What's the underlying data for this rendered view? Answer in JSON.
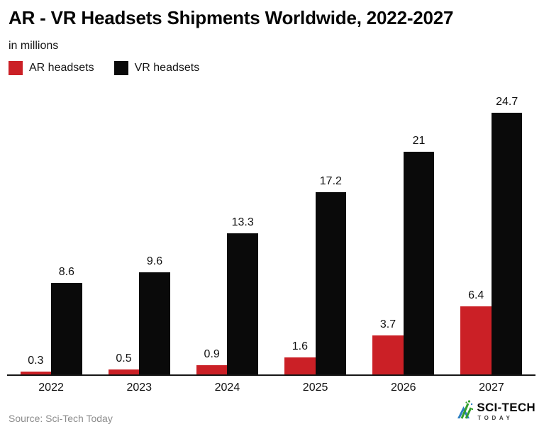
{
  "header": {
    "title": "AR - VR Headsets Shipments Worldwide, 2022-2027",
    "subtitle": "in millions"
  },
  "chart_data": {
    "type": "bar",
    "title": "AR - VR Headsets Shipments Worldwide, 2022-2027",
    "subtitle": "in millions",
    "categories": [
      "2022",
      "2023",
      "2024",
      "2025",
      "2026",
      "2027"
    ],
    "series": [
      {
        "name": "AR headsets",
        "color": "#cb2026",
        "values": [
          0.3,
          0.5,
          0.9,
          1.6,
          3.7,
          6.4
        ]
      },
      {
        "name": "VR headsets",
        "color": "#0a0a0a",
        "values": [
          8.6,
          9.6,
          13.3,
          17.2,
          21,
          24.7
        ]
      }
    ],
    "xlabel": "",
    "ylabel": "in millions",
    "ylim": [
      0,
      25.4
    ],
    "grid": false,
    "value_labels": true,
    "legend_position": "top-left",
    "axis_color": "#161616"
  },
  "footer": {
    "source": "Source: Sci-Tech Today",
    "logo_title": "SCI-TECH",
    "logo_subtitle": "TODAY",
    "logo_colors": {
      "blue": "#2e7fc1",
      "green": "#33a02c"
    }
  }
}
